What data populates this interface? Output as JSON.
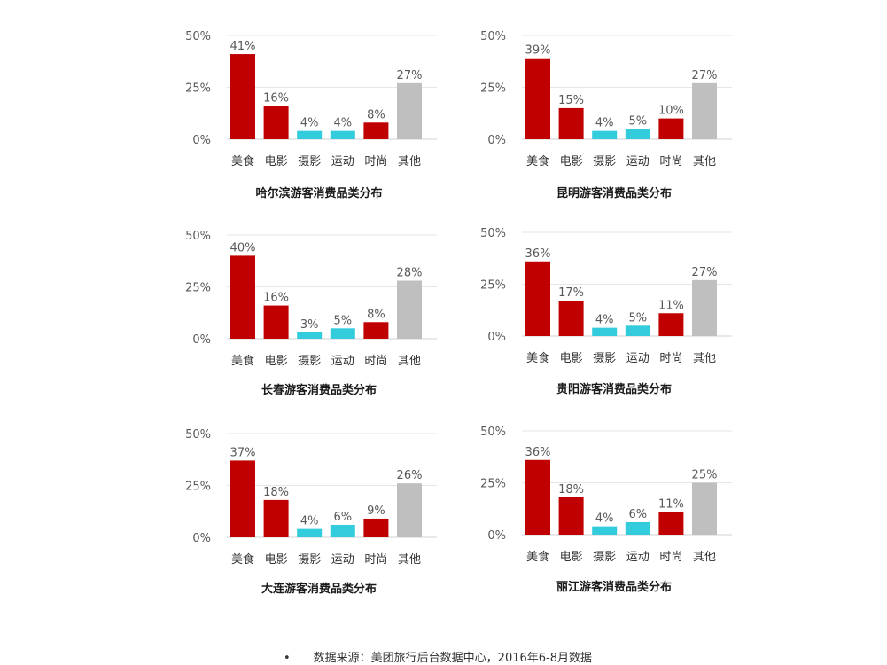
{
  "colors": {
    "red": "#c00000",
    "cyan": "#33ccdd",
    "grey": "#bfbfbf",
    "grid": "#e6e6e6",
    "text": "#595959"
  },
  "footer": {
    "bullet": "•",
    "text": "数据来源：美团旅行后台数据中心，2016年6-8月数据"
  },
  "chart_data": [
    {
      "type": "bar",
      "title": "哈尔滨游客消费品类分布",
      "categories": [
        "美食",
        "电影",
        "摄影",
        "运动",
        "时尚",
        "其他"
      ],
      "values": [
        41,
        16,
        4,
        4,
        8,
        27
      ],
      "value_labels": [
        "41%",
        "16%",
        "4%",
        "4%",
        "8%",
        "27%"
      ],
      "bar_colors": [
        "red",
        "red",
        "cyan",
        "cyan",
        "red",
        "grey"
      ],
      "ylim": [
        0,
        50
      ],
      "yticks": [
        "0%",
        "25%",
        "50%"
      ],
      "grid": true
    },
    {
      "type": "bar",
      "title": "昆明游客消费品类分布",
      "categories": [
        "美食",
        "电影",
        "摄影",
        "运动",
        "时尚",
        "其他"
      ],
      "values": [
        39,
        15,
        4,
        5,
        10,
        27
      ],
      "value_labels": [
        "39%",
        "15%",
        "4%",
        "5%",
        "10%",
        "27%"
      ],
      "bar_colors": [
        "red",
        "red",
        "cyan",
        "cyan",
        "red",
        "grey"
      ],
      "ylim": [
        0,
        50
      ],
      "yticks": [
        "0%",
        "25%",
        "50%"
      ],
      "grid": true
    },
    {
      "type": "bar",
      "title": "长春游客消费品类分布",
      "categories": [
        "美食",
        "电影",
        "摄影",
        "运动",
        "时尚",
        "其他"
      ],
      "values": [
        40,
        16,
        3,
        5,
        8,
        28
      ],
      "value_labels": [
        "40%",
        "16%",
        "3%",
        "5%",
        "8%",
        "28%"
      ],
      "bar_colors": [
        "red",
        "red",
        "cyan",
        "cyan",
        "red",
        "grey"
      ],
      "ylim": [
        0,
        50
      ],
      "yticks": [
        "0%",
        "25%",
        "50%"
      ],
      "grid": true
    },
    {
      "type": "bar",
      "title": "贵阳游客消费品类分布",
      "categories": [
        "美食",
        "电影",
        "摄影",
        "运动",
        "时尚",
        "其他"
      ],
      "values": [
        36,
        17,
        4,
        5,
        11,
        27
      ],
      "value_labels": [
        "36%",
        "17%",
        "4%",
        "5%",
        "11%",
        "27%"
      ],
      "bar_colors": [
        "red",
        "red",
        "cyan",
        "cyan",
        "red",
        "grey"
      ],
      "ylim": [
        0,
        50
      ],
      "yticks": [
        "0%",
        "25%",
        "50%"
      ],
      "grid": true
    },
    {
      "type": "bar",
      "title": "大连游客消费品类分布",
      "categories": [
        "美食",
        "电影",
        "摄影",
        "运动",
        "时尚",
        "其他"
      ],
      "values": [
        37,
        18,
        4,
        6,
        9,
        26
      ],
      "value_labels": [
        "37%",
        "18%",
        "4%",
        "6%",
        "9%",
        "26%"
      ],
      "bar_colors": [
        "red",
        "red",
        "cyan",
        "cyan",
        "red",
        "grey"
      ],
      "ylim": [
        0,
        50
      ],
      "yticks": [
        "0%",
        "25%",
        "50%"
      ],
      "grid": true
    },
    {
      "type": "bar",
      "title": "丽江游客消费品类分布",
      "categories": [
        "美食",
        "电影",
        "摄影",
        "运动",
        "时尚",
        "其他"
      ],
      "values": [
        36,
        18,
        4,
        6,
        11,
        25
      ],
      "value_labels": [
        "36%",
        "18%",
        "4%",
        "6%",
        "11%",
        "25%"
      ],
      "bar_colors": [
        "red",
        "red",
        "cyan",
        "cyan",
        "red",
        "grey"
      ],
      "ylim": [
        0,
        50
      ],
      "yticks": [
        "0%",
        "25%",
        "50%"
      ],
      "grid": true
    }
  ]
}
